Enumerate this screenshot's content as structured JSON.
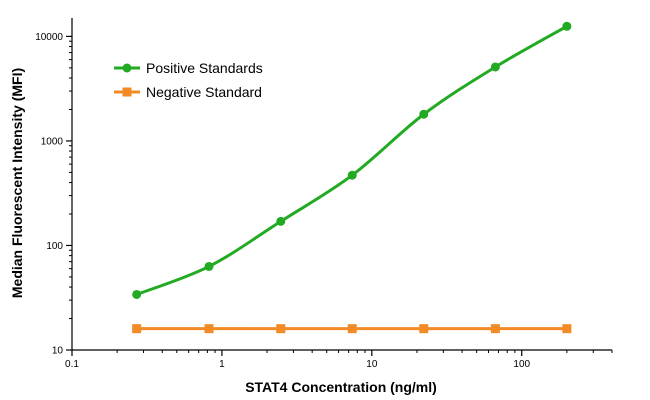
{
  "chart_data": {
    "type": "line",
    "xlabel": "STAT4 Concentration (ng/ml)",
    "ylabel": "Median Fluorescent Intensity (MFI)",
    "x_scale": "log",
    "y_scale": "log",
    "xlim": [
      0.1,
      400
    ],
    "ylim": [
      10,
      15000
    ],
    "x_ticks": [
      0.1,
      1,
      10,
      100
    ],
    "x_tick_labels": [
      "0.1",
      "1",
      "10",
      "100"
    ],
    "y_ticks": [
      10,
      100,
      1000,
      10000
    ],
    "y_tick_labels": [
      "10",
      "100",
      "1000",
      "10000"
    ],
    "grid": false,
    "legend_position": "top-left",
    "series": [
      {
        "name": "Positive Standards",
        "color": "#22aa22",
        "marker": "circle",
        "fit_curve": true,
        "x": [
          0.27,
          0.82,
          2.47,
          7.4,
          22.2,
          66.7,
          200
        ],
        "y": [
          34,
          63,
          170,
          470,
          1800,
          5100,
          12500
        ]
      },
      {
        "name": "Negative Standard",
        "color": "#f28a26",
        "marker": "square",
        "fit_curve": false,
        "x": [
          0.27,
          0.82,
          2.47,
          7.4,
          22.2,
          66.7,
          200
        ],
        "y": [
          16,
          16,
          16,
          16,
          16,
          16,
          16
        ]
      }
    ]
  }
}
